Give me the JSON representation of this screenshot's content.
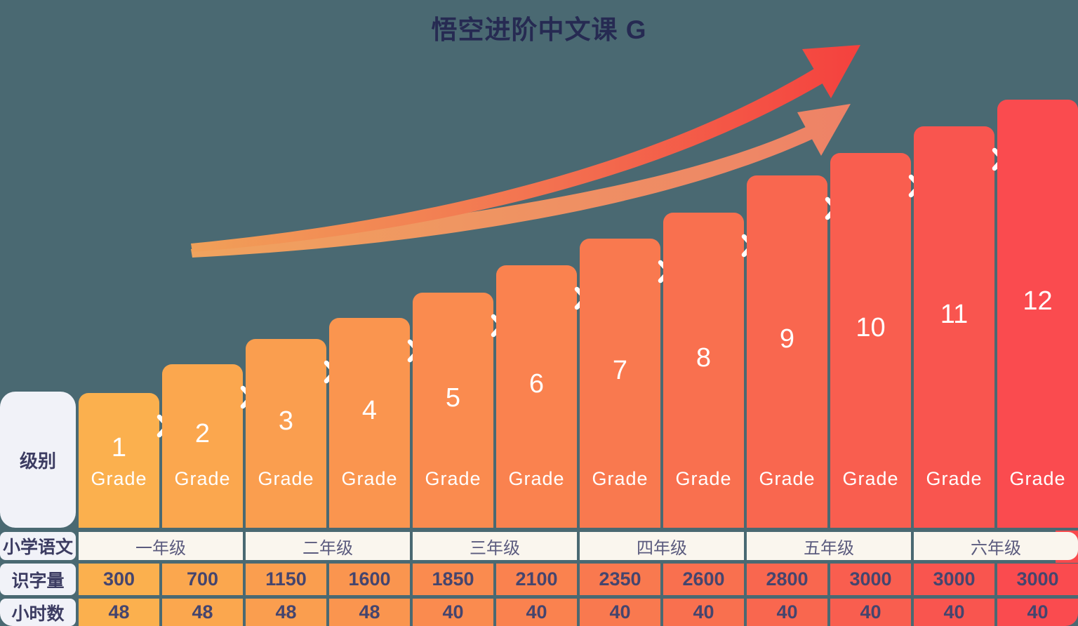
{
  "title": "悟空进阶中文课 G",
  "row_labels": {
    "level": "级别",
    "school": "小学语文",
    "chars": "识字量",
    "hours": "小时数"
  },
  "grade_word": "Grade",
  "levels": [
    {
      "number": "1",
      "color": "#FBB04E"
    },
    {
      "number": "2",
      "color": "#FBA74E"
    },
    {
      "number": "3",
      "color": "#FA9E4F"
    },
    {
      "number": "4",
      "color": "#FA954F"
    },
    {
      "number": "5",
      "color": "#FA8B4F"
    },
    {
      "number": "6",
      "color": "#FA824F"
    },
    {
      "number": "7",
      "color": "#F9794F"
    },
    {
      "number": "8",
      "color": "#F9704F"
    },
    {
      "number": "9",
      "color": "#F9674F"
    },
    {
      "number": "10",
      "color": "#F95E4F"
    },
    {
      "number": "11",
      "color": "#F9554F"
    },
    {
      "number": "12",
      "color": "#FA4B4F"
    }
  ],
  "school_grades": [
    "一年级",
    "二年级",
    "三年级",
    "四年级",
    "五年级",
    "六年级"
  ],
  "chars": [
    "300",
    "700",
    "1150",
    "1600",
    "1850",
    "2100",
    "2350",
    "2600",
    "2800",
    "3000",
    "3000",
    "3000"
  ],
  "hours": [
    "48",
    "48",
    "48",
    "48",
    "40",
    "40",
    "40",
    "40",
    "40",
    "40",
    "40",
    "40"
  ],
  "colors": {
    "background": "#4A6972",
    "title_text": "#262A52",
    "label_cell_bg": "#F1F2F8",
    "label_text": "#3C3C62",
    "school_cell_bg": "#FAF6EE",
    "school_text": "#5B5B7E",
    "value_text": "#45456E",
    "bar_text": "#FFFFFF",
    "chevron": "#FFFFFF",
    "arrow_top_start": "#F1A058",
    "arrow_top_mid": "#F37050",
    "arrow_top_end": "#F4413E",
    "arrow_bottom_start": "#F0A35E",
    "arrow_bottom_end": "#EE8267",
    "corner_accent": "#CC4F47",
    "right_edge_accent": "#F9494C"
  },
  "chart_data": {
    "type": "bar",
    "title": "悟空进阶中文课 G",
    "categories": [
      "1",
      "2",
      "3",
      "4",
      "5",
      "6",
      "7",
      "8",
      "9",
      "10",
      "11",
      "12"
    ],
    "category_label": "Grade",
    "series": [
      {
        "name": "识字量",
        "values": [
          300,
          700,
          1150,
          1600,
          1850,
          2100,
          2350,
          2600,
          2800,
          3000,
          3000,
          3000
        ]
      },
      {
        "name": "小时数",
        "values": [
          48,
          48,
          48,
          48,
          40,
          40,
          40,
          40,
          40,
          40,
          40,
          40
        ]
      }
    ],
    "groups": [
      {
        "label": "一年级",
        "levels": [
          "1",
          "2"
        ]
      },
      {
        "label": "二年级",
        "levels": [
          "3",
          "4"
        ]
      },
      {
        "label": "三年级",
        "levels": [
          "5",
          "6"
        ]
      },
      {
        "label": "四年级",
        "levels": [
          "7",
          "8"
        ]
      },
      {
        "label": "五年级",
        "levels": [
          "9",
          "10"
        ]
      },
      {
        "label": "六年级",
        "levels": [
          "11",
          "12"
        ]
      }
    ],
    "legend": false,
    "grid": false,
    "note": "staircase of 12 level bars rising left to right with two curved growth arrows above"
  }
}
